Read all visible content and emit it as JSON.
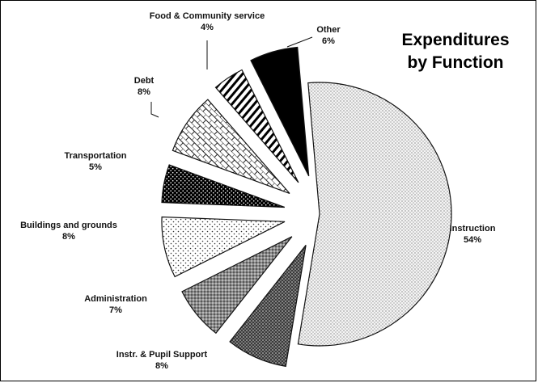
{
  "chart_data": {
    "type": "pie",
    "title_lines": [
      "Expenditures",
      "by Function"
    ],
    "slices": [
      {
        "label": "Instruction",
        "value": 54,
        "value_text": "54%",
        "pattern": "dots-fine"
      },
      {
        "label": "Instr. &  Pupil Support",
        "value": 8,
        "value_text": "8%",
        "pattern": "dark-dots"
      },
      {
        "label": "Administration",
        "value": 7,
        "value_text": "7%",
        "pattern": "medium-dots"
      },
      {
        "label": "Buildings and grounds",
        "value": 8,
        "value_text": "8%",
        "pattern": "sparse-dots"
      },
      {
        "label": "Transportation",
        "value": 5,
        "value_text": "5%",
        "pattern": "black-dots"
      },
      {
        "label": "Debt",
        "value": 8,
        "value_text": "8%",
        "pattern": "bricks"
      },
      {
        "label": "Food & Community service",
        "value": 4,
        "value_text": "4%",
        "pattern": "diagonal-stripes"
      },
      {
        "label": "Other",
        "value": 6,
        "value_text": "6%",
        "pattern": "solid-black"
      }
    ]
  }
}
